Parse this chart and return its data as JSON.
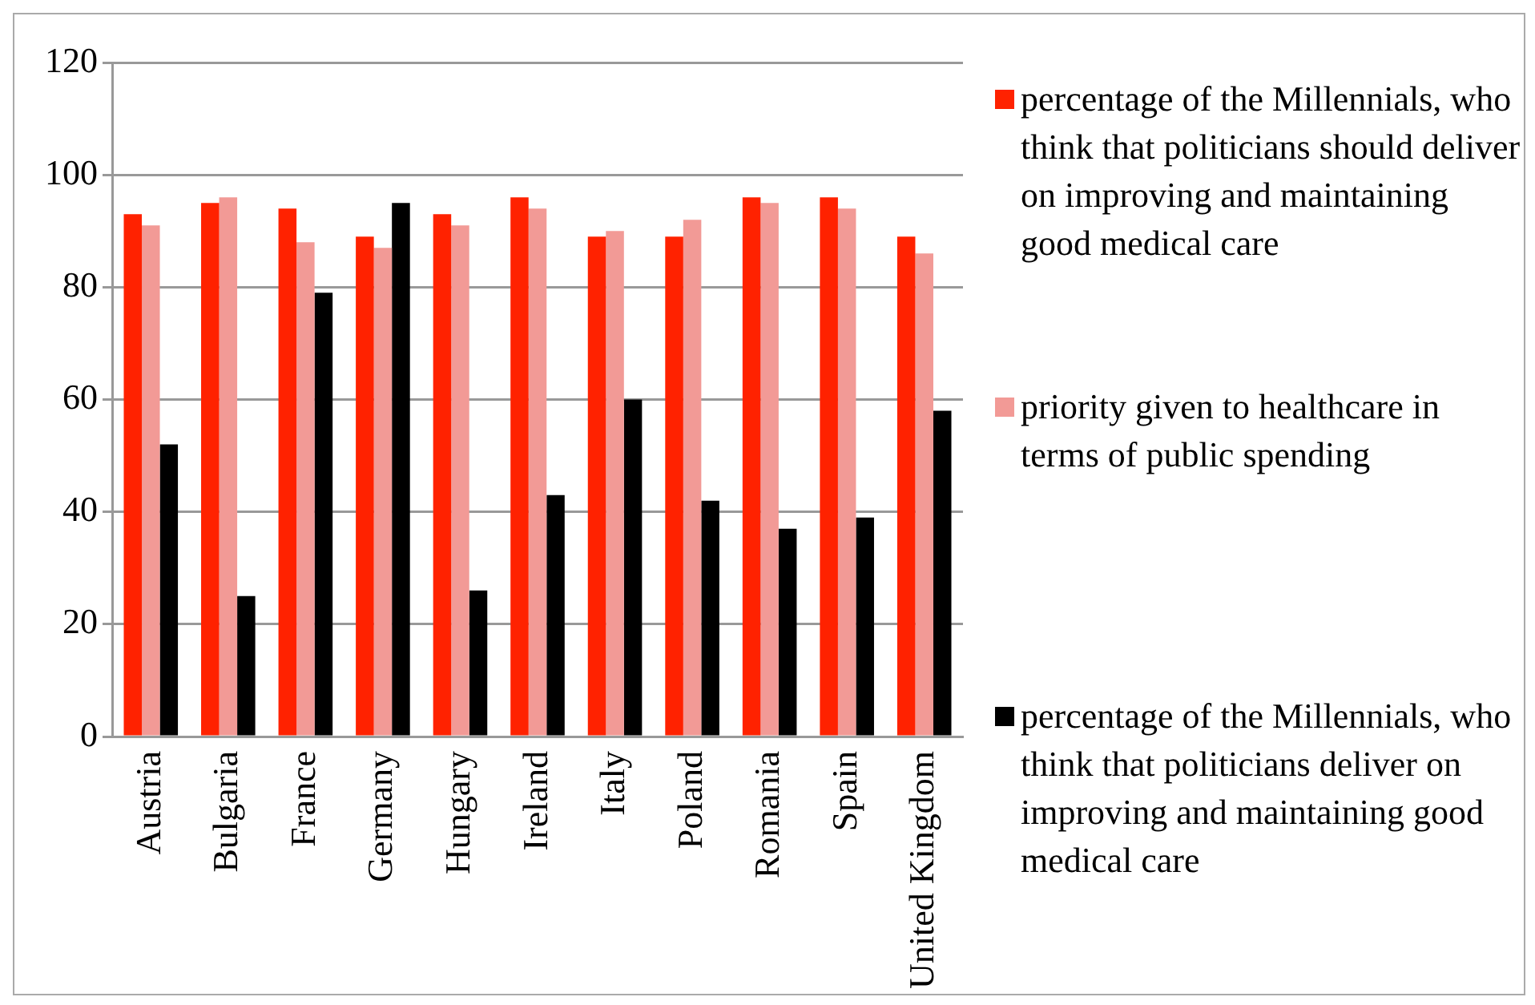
{
  "chart_data": {
    "type": "bar",
    "categories": [
      "Austria",
      "Bulgaria",
      "France",
      "Germany",
      "Hungary",
      "Ireland",
      "Italy",
      "Poland",
      "Romania",
      "Spain",
      "United Kingdom"
    ],
    "series": [
      {
        "name": "percentage of the Millennials, who think that politicians should deliver on improving and maintaining good medical care",
        "color": "#ff2200",
        "values": [
          93,
          95,
          94,
          89,
          93,
          96,
          89,
          89,
          96,
          96,
          89
        ]
      },
      {
        "name": "priority given to healthcare in terms of public spending",
        "color": "#f29a96",
        "values": [
          91,
          96,
          88,
          87,
          91,
          94,
          90,
          92,
          95,
          94,
          86
        ]
      },
      {
        "name": "percentage of the Millennials, who think that politicians deliver on improving and maintaining good medical care",
        "color": "#000000",
        "values": [
          52,
          25,
          79,
          95,
          26,
          43,
          60,
          42,
          37,
          39,
          58
        ]
      }
    ],
    "ylim": [
      0,
      120
    ],
    "yticks": [
      0,
      20,
      40,
      60,
      80,
      100,
      120
    ],
    "grid": "y",
    "legend": "right"
  }
}
